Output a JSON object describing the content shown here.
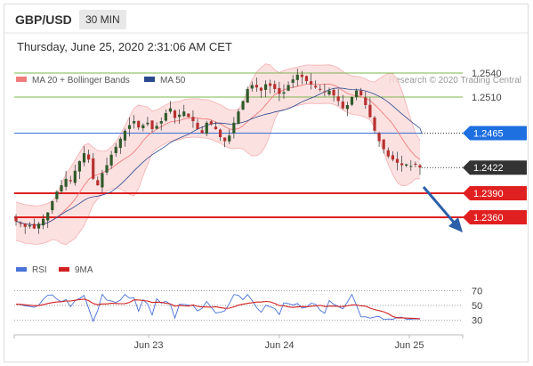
{
  "header": {
    "symbol": "GBP/USD",
    "timeframe": "30 MIN",
    "datetime": "Thursday, June 25, 2020 2:31:06 AM CET"
  },
  "credit": "Research © 2020 Trading Central",
  "colors": {
    "bollinger": "#f07c7c",
    "bollinger_fill": "#fbdcdc",
    "ma50": "#2b4a8e",
    "support": "#e02020",
    "resistance": "#7ab84a",
    "current_line": "#3a6fd8",
    "pivot": "#1e6fe0",
    "arrow": "#2b5ea8",
    "candle_up": "#2f5a2a",
    "candle_down": "#b83030",
    "rsi": "#4a72d8",
    "rsi_ma": "#d22020"
  },
  "chart_data": [
    {
      "type": "candlestick",
      "legend": [
        {
          "name": "MA 20 + Bollinger Bands",
          "color": "#f07c7c"
        },
        {
          "name": "MA 50",
          "color": "#2b4a8e"
        }
      ],
      "x_ticks": [
        "Jun 23",
        "Jun 24",
        "Jun 25"
      ],
      "ylim": [
        1.232,
        1.256
      ],
      "levels": [
        {
          "value": 1.254,
          "label": "1.2540",
          "kind": "resistance"
        },
        {
          "value": 1.251,
          "label": "1.2510",
          "kind": "resistance"
        },
        {
          "value": 1.2465,
          "label": "1.2465",
          "kind": "pivot"
        },
        {
          "value": 1.2422,
          "label": "1.2422",
          "kind": "last"
        },
        {
          "value": 1.239,
          "label": "1.2390",
          "kind": "support"
        },
        {
          "value": 1.236,
          "label": "1.2360",
          "kind": "support"
        }
      ],
      "close_series": [
        1.2355,
        1.2352,
        1.2348,
        1.235,
        1.2346,
        1.2352,
        1.2358,
        1.2366,
        1.238,
        1.2392,
        1.24,
        1.2408,
        1.2405,
        1.2418,
        1.243,
        1.244,
        1.2432,
        1.2408,
        1.24,
        1.2415,
        1.2425,
        1.2438,
        1.2448,
        1.2458,
        1.2468,
        1.2475,
        1.248,
        1.2472,
        1.2475,
        1.2478,
        1.247,
        1.2474,
        1.248,
        1.249,
        1.2496,
        1.2484,
        1.2488,
        1.2492,
        1.2485,
        1.248,
        1.247,
        1.2465,
        1.2478,
        1.2476,
        1.247,
        1.246,
        1.2455,
        1.2462,
        1.2478,
        1.2492,
        1.2505,
        1.252,
        1.2525,
        1.2522,
        1.2518,
        1.2526,
        1.2524,
        1.252,
        1.2514,
        1.2516,
        1.2525,
        1.2532,
        1.2538,
        1.2535,
        1.253,
        1.2526,
        1.2522,
        1.252,
        1.2516,
        1.2518,
        1.2512,
        1.2505,
        1.2496,
        1.25,
        1.251,
        1.2518,
        1.2512,
        1.25,
        1.2485,
        1.2468,
        1.2455,
        1.2445,
        1.2436,
        1.2432,
        1.2428,
        1.2425,
        1.2426,
        1.2424,
        1.2426,
        1.2422
      ]
    },
    {
      "type": "line",
      "legend": [
        {
          "name": "RSI",
          "color": "#4a72d8"
        },
        {
          "name": "9MA",
          "color": "#d22020"
        }
      ],
      "y_ticks": [
        70,
        50,
        30
      ],
      "ylim": [
        20,
        80
      ]
    }
  ]
}
